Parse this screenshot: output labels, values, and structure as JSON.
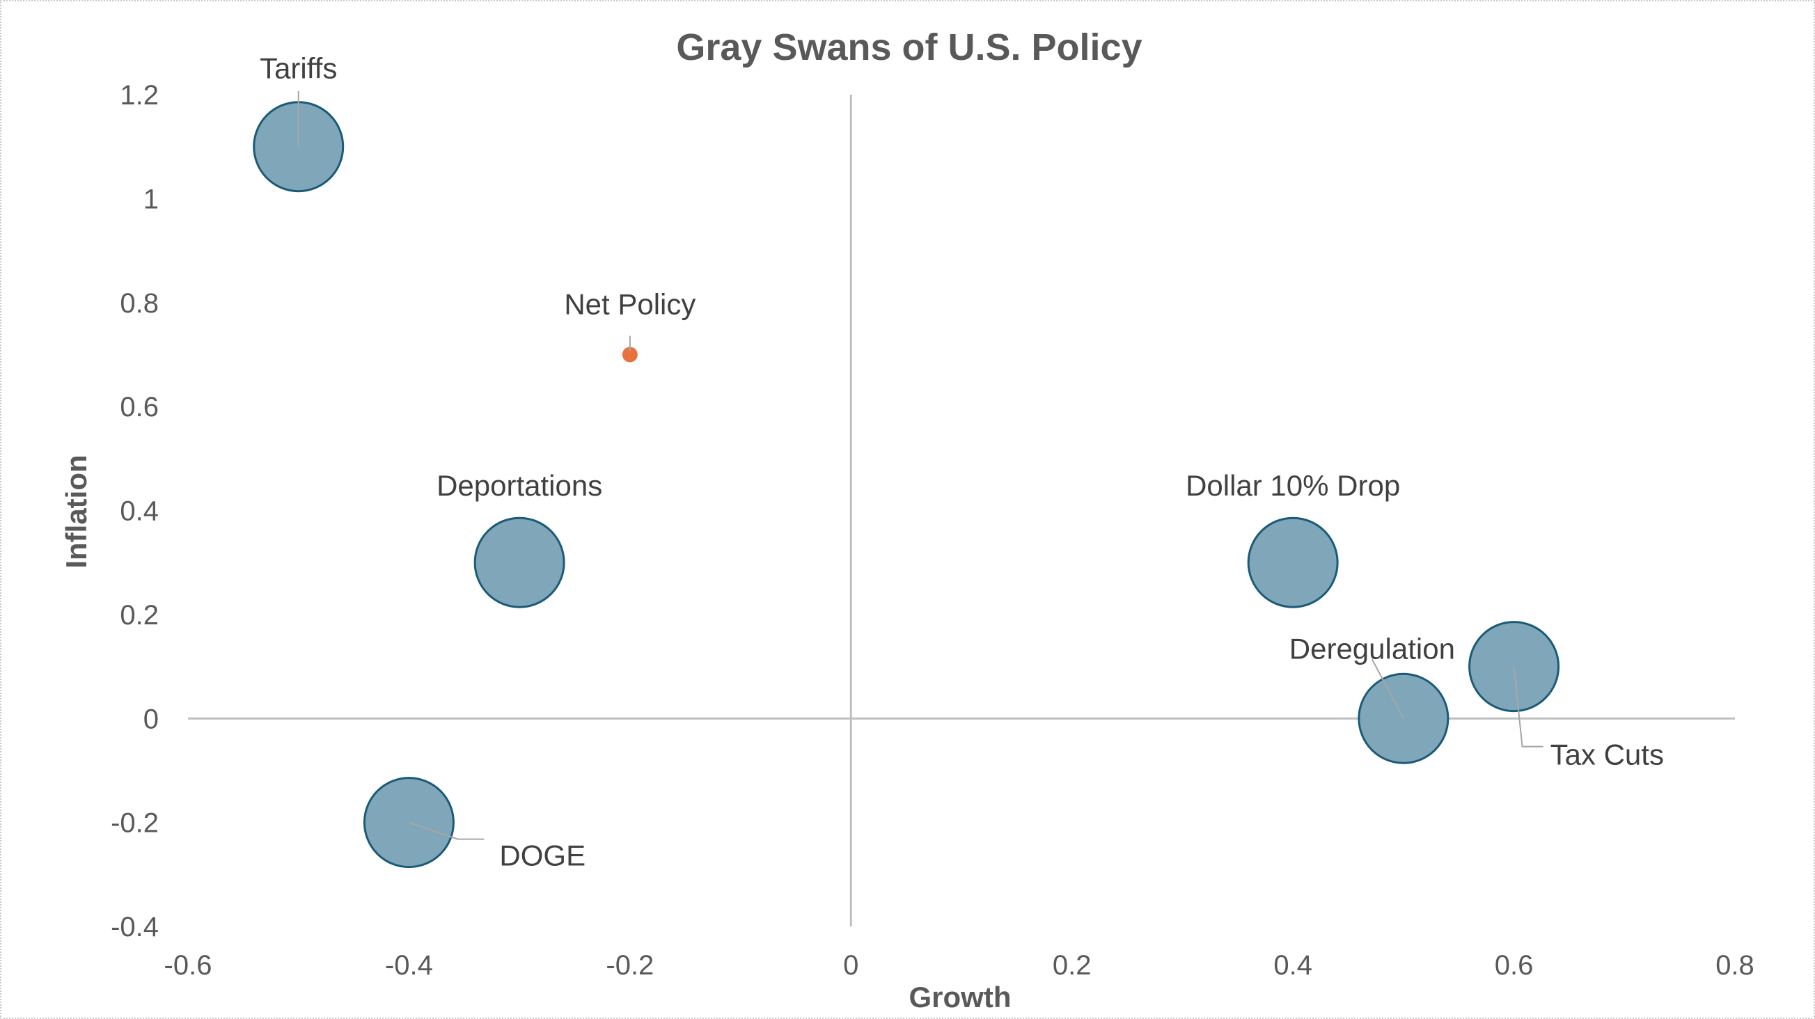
{
  "chart_data": {
    "type": "scatter",
    "title": "Gray Swans of U.S. Policy",
    "xlabel": "Growth",
    "ylabel": "Inflation",
    "xlim": [
      -0.6,
      0.8
    ],
    "ylim": [
      -0.4,
      1.2
    ],
    "x_ticks": [
      -0.6,
      -0.4,
      -0.2,
      0,
      0.2,
      0.4,
      0.6,
      0.8
    ],
    "y_ticks": [
      -0.4,
      -0.2,
      0,
      0.2,
      0.4,
      0.6,
      0.8,
      1,
      1.2
    ],
    "x_tick_labels": [
      "-0.6",
      "-0.4",
      "-0.2",
      "0",
      "0.2",
      "0.4",
      "0.6",
      "0.8"
    ],
    "y_tick_labels": [
      "-0.4",
      "-0.2",
      "0",
      "0.2",
      "0.4",
      "0.6",
      "0.8",
      "1",
      "1.2"
    ],
    "grid": false,
    "colors": {
      "bubble_fill": "#7fa7b9",
      "bubble_stroke": "#1b5a78",
      "net_point": "#e8713c",
      "axis_line": "#bfbfbf",
      "leader_line": "#a6a6a6"
    },
    "series": [
      {
        "name": "Policies",
        "points": [
          {
            "name": "Tariffs",
            "x": -0.5,
            "y": 1.1,
            "label": "Tariffs"
          },
          {
            "name": "Deportations",
            "x": -0.3,
            "y": 0.3,
            "label": "Deportations"
          },
          {
            "name": "DOGE",
            "x": -0.4,
            "y": -0.2,
            "label": "DOGE"
          },
          {
            "name": "Dollar 10% Drop",
            "x": 0.4,
            "y": 0.3,
            "label": "Dollar 10% Drop"
          },
          {
            "name": "Deregulation",
            "x": 0.5,
            "y": 0.0,
            "label": "Deregulation"
          },
          {
            "name": "Tax Cuts",
            "x": 0.6,
            "y": 0.1,
            "label": "Tax Cuts"
          }
        ]
      },
      {
        "name": "Net Policy",
        "points": [
          {
            "name": "Net Policy",
            "x": -0.2,
            "y": 0.7,
            "label": "Net Policy"
          }
        ]
      }
    ]
  }
}
